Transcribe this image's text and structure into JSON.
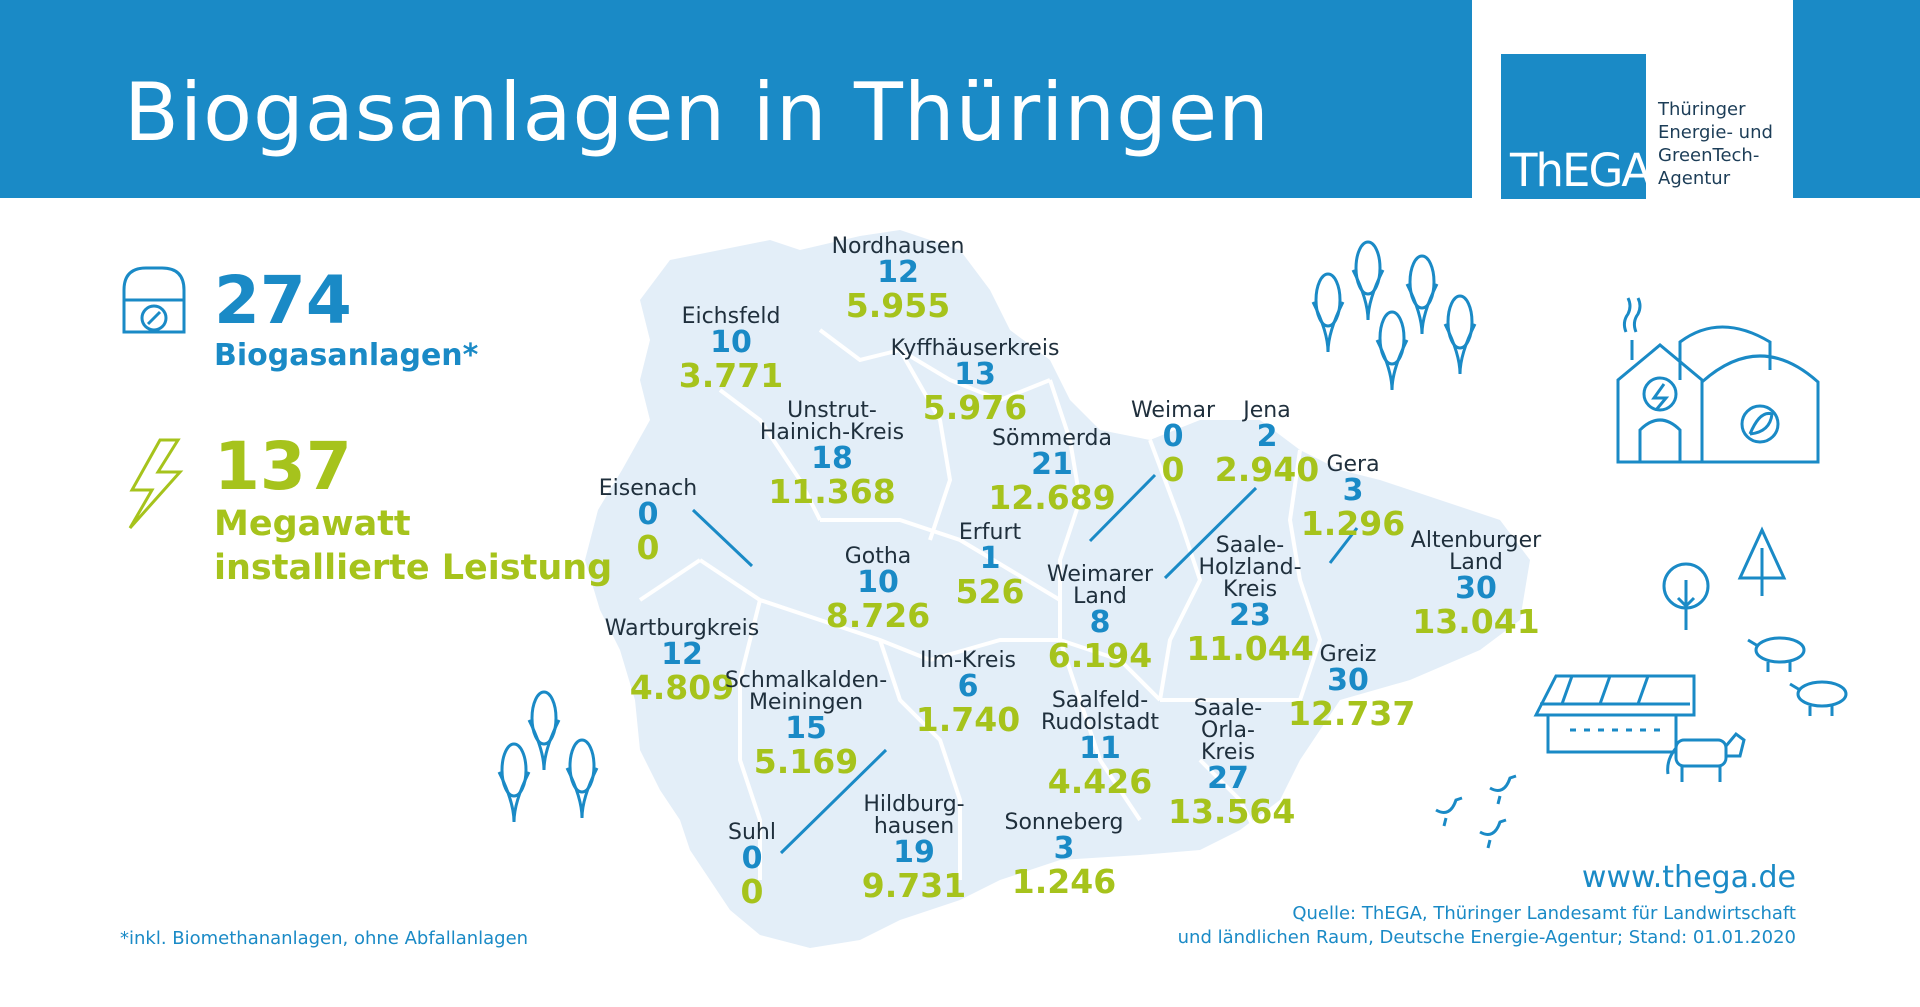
{
  "header": {
    "title": "Biogasanlagen in Thüringen",
    "logo_word": "ThEGA",
    "logo_text": [
      "Thüringer",
      "Energie- und",
      "GreenTech-",
      "Agentur"
    ]
  },
  "stats": {
    "plants_total": "274",
    "plants_label": "Biogasanlagen*",
    "mw_total": "137",
    "mw_label_1": "Megawatt",
    "mw_label_2": "installierte Leistung"
  },
  "regions": [
    {
      "name_lines": [
        "Nordhausen"
      ],
      "count": "12",
      "mw": "5.955"
    },
    {
      "name_lines": [
        "Eichsfeld"
      ],
      "count": "10",
      "mw": "3.771"
    },
    {
      "name_lines": [
        "Kyffhäuserkreis"
      ],
      "count": "13",
      "mw": "5.976"
    },
    {
      "name_lines": [
        "Unstrut-",
        "Hainich-Kreis"
      ],
      "count": "18",
      "mw": "11.368"
    },
    {
      "name_lines": [
        "Sömmerda"
      ],
      "count": "21",
      "mw": "12.689"
    },
    {
      "name_lines": [
        "Weimar"
      ],
      "count": "0",
      "mw": "0"
    },
    {
      "name_lines": [
        "Jena"
      ],
      "count": "2",
      "mw": "2.940"
    },
    {
      "name_lines": [
        "Gera"
      ],
      "count": "3",
      "mw": "1.296"
    },
    {
      "name_lines": [
        "Eisenach"
      ],
      "count": "0",
      "mw": "0"
    },
    {
      "name_lines": [
        "Erfurt"
      ],
      "count": "1",
      "mw": "526"
    },
    {
      "name_lines": [
        "Gotha"
      ],
      "count": "10",
      "mw": "8.726"
    },
    {
      "name_lines": [
        "Weimarer",
        "Land"
      ],
      "count": "8",
      "mw": "6.194"
    },
    {
      "name_lines": [
        "Saale-",
        "Holzland-",
        "Kreis"
      ],
      "count": "23",
      "mw": "11.044"
    },
    {
      "name_lines": [
        "Altenburger",
        "Land"
      ],
      "count": "30",
      "mw": "13.041"
    },
    {
      "name_lines": [
        "Wartburgkreis"
      ],
      "count": "12",
      "mw": "4.809"
    },
    {
      "name_lines": [
        "Schmalkalden-",
        "Meiningen"
      ],
      "count": "15",
      "mw": "5.169"
    },
    {
      "name_lines": [
        "Ilm-Kreis"
      ],
      "count": "6",
      "mw": "1.740"
    },
    {
      "name_lines": [
        "Saalfeld-",
        "Rudolstadt"
      ],
      "count": "11",
      "mw": "4.426"
    },
    {
      "name_lines": [
        "Greiz"
      ],
      "count": "30",
      "mw": "12.737"
    },
    {
      "name_lines": [
        "Saale-",
        "Orla-",
        "Kreis"
      ],
      "count": "27",
      "mw": "13.564"
    },
    {
      "name_lines": [
        "Suhl"
      ],
      "count": "0",
      "mw": "0"
    },
    {
      "name_lines": [
        "Hildburg-",
        "hausen"
      ],
      "count": "19",
      "mw": "9.731"
    },
    {
      "name_lines": [
        "Sonneberg"
      ],
      "count": "3",
      "mw": "1.246"
    }
  ],
  "footer": {
    "note": "*inkl. Biomethananlagen, ohne Abfallanlagen",
    "website": "www.thega.de",
    "source_1": "Quelle: ThEGA, Thüringer Landesamt für Landwirtschaft",
    "source_2": "und ländlichen Raum, Deutsche Energie-Agentur; Stand: 01.01.2020"
  },
  "colors": {
    "primary_blue": "#1a8ac6",
    "accent_green": "#a6c31c",
    "map_fill": "#e3eef8"
  },
  "icons": [
    "biogas-plant-icon",
    "lightning-icon",
    "corn-icon",
    "farm-icon",
    "tree-icon",
    "pig-icon",
    "cow-icon",
    "chicken-icon"
  ]
}
